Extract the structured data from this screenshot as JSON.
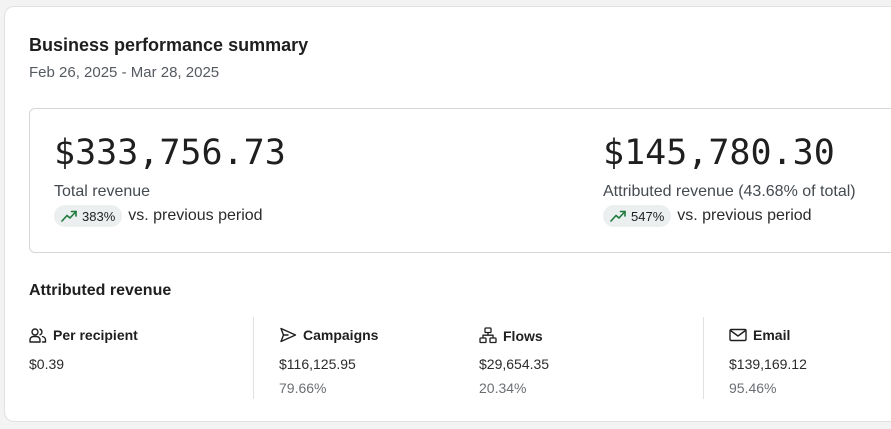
{
  "summary": {
    "title": "Business performance summary",
    "date_range": "Feb 26, 2025 - Mar 28, 2025"
  },
  "kpis": [
    {
      "value": "$333,756.73",
      "label": "Total revenue",
      "change": "383%",
      "change_suffix": "vs. previous period",
      "trend_icon": "trending-up-icon"
    },
    {
      "value": "$145,780.30",
      "label": "Attributed revenue (43.68% of total)",
      "change": "547%",
      "change_suffix": "vs. previous period",
      "trend_icon": "trending-up-icon"
    }
  ],
  "attributed": {
    "title": "Attributed revenue",
    "metrics": [
      {
        "icon": "users-icon",
        "name": "Per recipient",
        "value": "$0.39",
        "pct": ""
      },
      {
        "icon": "send-icon",
        "name": "Campaigns",
        "value": "$116,125.95",
        "pct": "79.66%"
      },
      {
        "icon": "flow-icon",
        "name": "Flows",
        "value": "$29,654.35",
        "pct": "20.34%"
      },
      {
        "icon": "mail-icon",
        "name": "Email",
        "value": "$139,169.12",
        "pct": "95.46%"
      }
    ]
  },
  "colors": {
    "trend_up": "#1e7a3c",
    "badge_bg": "#ebefef"
  }
}
